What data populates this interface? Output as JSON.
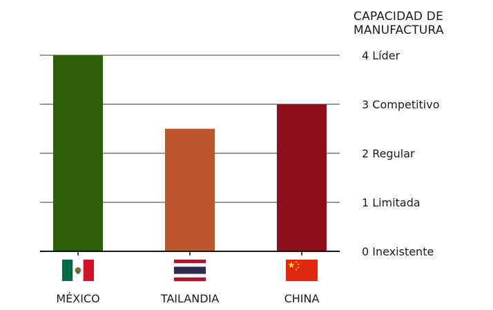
{
  "chart_data": {
    "type": "bar",
    "title_lines": [
      "CAPACIDAD DE",
      "MANUFACTURA"
    ],
    "categories": [
      "MÉXICO",
      "TAILANDIA",
      "CHINA"
    ],
    "values": [
      4,
      2.5,
      3
    ],
    "bar_colors": [
      "#2d5e0a",
      "#bf562b",
      "#8e0e1b"
    ],
    "ylim": [
      0,
      4
    ],
    "yticks": [
      {
        "value": 0,
        "label": "0 Inexistente"
      },
      {
        "value": 1,
        "label": "1 Limitada"
      },
      {
        "value": 2,
        "label": "2 Regular"
      },
      {
        "value": 3,
        "label": "3 Competitivo"
      },
      {
        "value": 4,
        "label": "4 Líder"
      }
    ],
    "flags": [
      "mexico-flag-icon",
      "thailand-flag-icon",
      "china-flag-icon"
    ],
    "grid": true
  }
}
